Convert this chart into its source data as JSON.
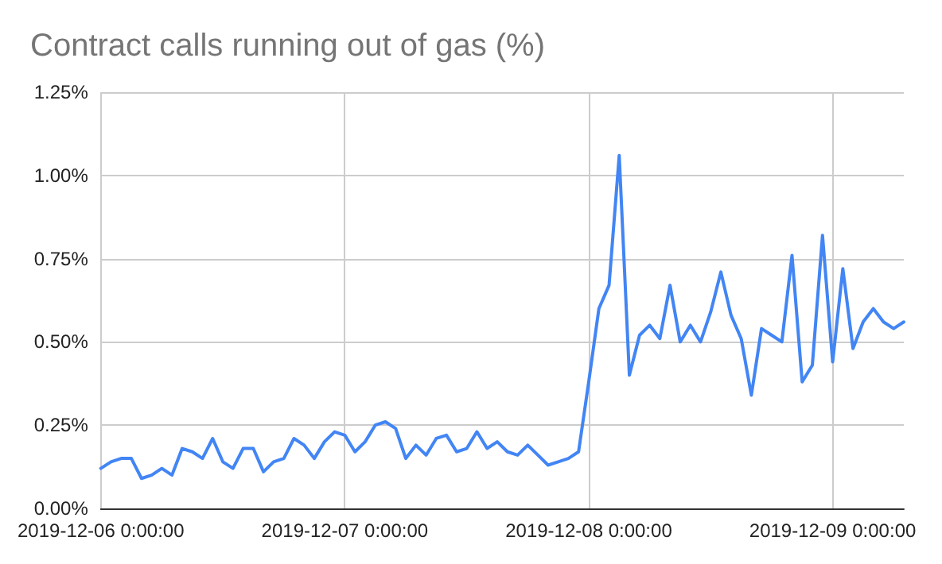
{
  "chart_data": {
    "type": "line",
    "title": "Contract calls running out of gas (%)",
    "x": [
      "2019-12-06T00:00",
      "2019-12-06T01:00",
      "2019-12-06T02:00",
      "2019-12-06T03:00",
      "2019-12-06T04:00",
      "2019-12-06T05:00",
      "2019-12-06T06:00",
      "2019-12-06T07:00",
      "2019-12-06T08:00",
      "2019-12-06T09:00",
      "2019-12-06T10:00",
      "2019-12-06T11:00",
      "2019-12-06T12:00",
      "2019-12-06T13:00",
      "2019-12-06T14:00",
      "2019-12-06T15:00",
      "2019-12-06T16:00",
      "2019-12-06T17:00",
      "2019-12-06T18:00",
      "2019-12-06T19:00",
      "2019-12-06T20:00",
      "2019-12-06T21:00",
      "2019-12-06T22:00",
      "2019-12-06T23:00",
      "2019-12-07T00:00",
      "2019-12-07T01:00",
      "2019-12-07T02:00",
      "2019-12-07T03:00",
      "2019-12-07T04:00",
      "2019-12-07T05:00",
      "2019-12-07T06:00",
      "2019-12-07T07:00",
      "2019-12-07T08:00",
      "2019-12-07T09:00",
      "2019-12-07T10:00",
      "2019-12-07T11:00",
      "2019-12-07T12:00",
      "2019-12-07T13:00",
      "2019-12-07T14:00",
      "2019-12-07T15:00",
      "2019-12-07T16:00",
      "2019-12-07T17:00",
      "2019-12-07T18:00",
      "2019-12-07T19:00",
      "2019-12-07T20:00",
      "2019-12-07T21:00",
      "2019-12-07T22:00",
      "2019-12-07T23:00",
      "2019-12-08T00:00",
      "2019-12-08T01:00",
      "2019-12-08T02:00",
      "2019-12-08T03:00",
      "2019-12-08T04:00",
      "2019-12-08T05:00",
      "2019-12-08T06:00",
      "2019-12-08T07:00",
      "2019-12-08T08:00",
      "2019-12-08T09:00",
      "2019-12-08T10:00",
      "2019-12-08T11:00",
      "2019-12-08T12:00",
      "2019-12-08T13:00",
      "2019-12-08T14:00",
      "2019-12-08T15:00",
      "2019-12-08T16:00",
      "2019-12-08T17:00",
      "2019-12-08T18:00",
      "2019-12-08T19:00",
      "2019-12-08T20:00",
      "2019-12-08T21:00",
      "2019-12-08T22:00",
      "2019-12-08T23:00",
      "2019-12-09T00:00",
      "2019-12-09T01:00",
      "2019-12-09T02:00",
      "2019-12-09T03:00",
      "2019-12-09T04:00",
      "2019-12-09T05:00",
      "2019-12-09T06:00",
      "2019-12-09T07:00"
    ],
    "series": [
      {
        "color": "#4285f4",
        "values": [
          0.12,
          0.14,
          0.15,
          0.15,
          0.09,
          0.1,
          0.12,
          0.1,
          0.18,
          0.17,
          0.15,
          0.21,
          0.14,
          0.12,
          0.18,
          0.18,
          0.11,
          0.14,
          0.15,
          0.21,
          0.19,
          0.15,
          0.2,
          0.23,
          0.22,
          0.17,
          0.2,
          0.25,
          0.26,
          0.24,
          0.15,
          0.19,
          0.16,
          0.21,
          0.22,
          0.17,
          0.18,
          0.23,
          0.18,
          0.2,
          0.17,
          0.16,
          0.19,
          0.16,
          0.13,
          0.14,
          0.15,
          0.17,
          0.38,
          0.6,
          0.67,
          1.06,
          0.4,
          0.52,
          0.55,
          0.51,
          0.67,
          0.5,
          0.55,
          0.5,
          0.59,
          0.71,
          0.58,
          0.51,
          0.34,
          0.54,
          0.52,
          0.5,
          0.76,
          0.38,
          0.43,
          0.82,
          0.44,
          0.72,
          0.48,
          0.56,
          0.6,
          0.56,
          0.54,
          0.56
        ]
      }
    ],
    "xlim": [
      "2019-12-06T00:00",
      "2019-12-09T07:00"
    ],
    "xticks": [
      {
        "value": "2019-12-06",
        "label": "2019-12-06 0:00:00"
      },
      {
        "value": "2019-12-07",
        "label": "2019-12-07 0:00:00"
      },
      {
        "value": "2019-12-08",
        "label": "2019-12-08 0:00:00"
      },
      {
        "value": "2019-12-09",
        "label": "2019-12-09 0:00:00"
      }
    ],
    "ylim": [
      0,
      1.25
    ],
    "yticks": [
      {
        "value": 0,
        "label": "0.00%"
      },
      {
        "value": 0.25,
        "label": "0.25%"
      },
      {
        "value": 0.5,
        "label": "0.50%"
      },
      {
        "value": 0.75,
        "label": "0.75%"
      },
      {
        "value": 1,
        "label": "1.00%"
      },
      {
        "value": 1.25,
        "label": "1.25%"
      }
    ],
    "grid": true,
    "marker": "none",
    "line_style": "solid"
  }
}
